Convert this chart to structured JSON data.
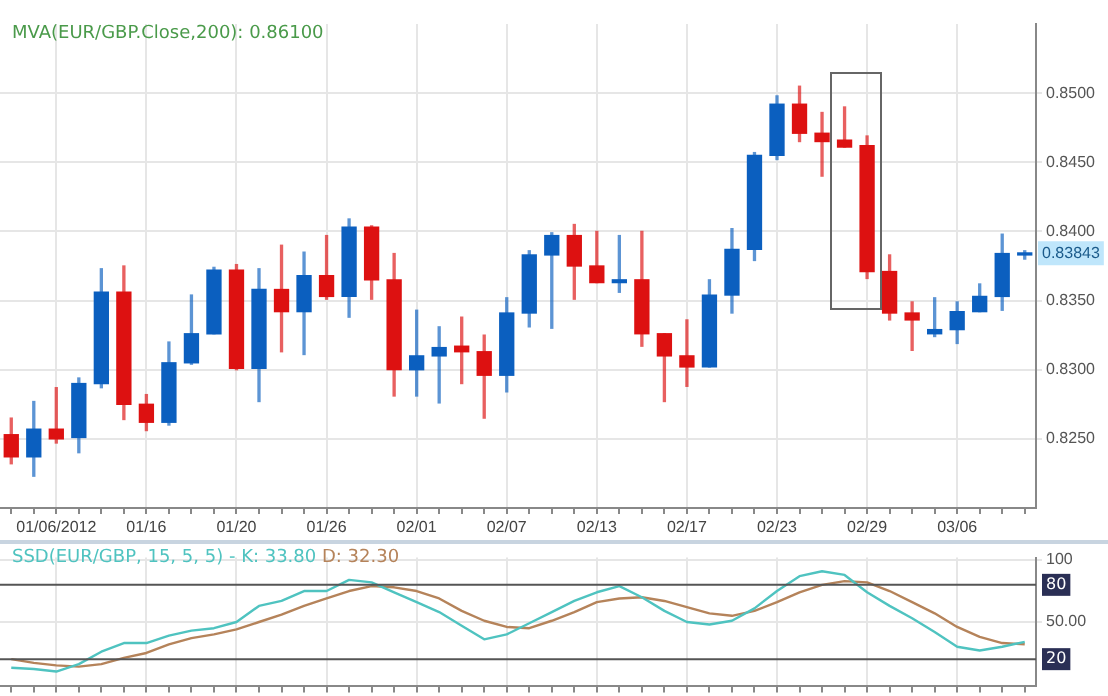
{
  "chart_data": [
    {
      "type": "candlestick",
      "title": "MVA(EUR/GBP.Close,200): 0.86100",
      "categories": [
        null,
        null,
        "01/06/2012",
        null,
        null,
        null,
        "01/16",
        null,
        null,
        null,
        "01/20",
        null,
        null,
        null,
        "01/26",
        null,
        null,
        null,
        "02/01",
        null,
        null,
        null,
        "02/07",
        null,
        null,
        null,
        "02/13",
        null,
        null,
        null,
        "02/17",
        null,
        null,
        null,
        "02/23",
        null,
        null,
        null,
        "02/29",
        null,
        null,
        null,
        "03/06",
        null,
        null,
        null
      ],
      "ohlc": [
        [
          0.8253,
          0.8265,
          0.8232,
          0.8237
        ],
        [
          0.8237,
          0.8277,
          0.8223,
          0.8257
        ],
        [
          0.8257,
          0.8287,
          0.8247,
          0.825
        ],
        [
          0.8251,
          0.8294,
          0.824,
          0.829
        ],
        [
          0.829,
          0.8373,
          0.8287,
          0.8356
        ],
        [
          0.8356,
          0.8375,
          0.8264,
          0.8275
        ],
        [
          0.8275,
          0.8282,
          0.8256,
          0.8262
        ],
        [
          0.8262,
          0.832,
          0.826,
          0.8305
        ],
        [
          0.8305,
          0.8354,
          0.8304,
          0.8326
        ],
        [
          0.8326,
          0.8374,
          0.8326,
          0.8372
        ],
        [
          0.8372,
          0.8376,
          0.83,
          0.8301
        ],
        [
          0.8301,
          0.8373,
          0.8277,
          0.8358
        ],
        [
          0.8358,
          0.839,
          0.8313,
          0.8342
        ],
        [
          0.8342,
          0.8385,
          0.8311,
          0.8368
        ],
        [
          0.8368,
          0.8397,
          0.8351,
          0.8353
        ],
        [
          0.8353,
          0.8409,
          0.8338,
          0.8403
        ],
        [
          0.8403,
          0.8404,
          0.8351,
          0.8365
        ],
        [
          0.8365,
          0.8384,
          0.8281,
          0.83
        ],
        [
          0.83,
          0.8343,
          0.8281,
          0.831
        ],
        [
          0.831,
          0.8331,
          0.8276,
          0.8316
        ],
        [
          0.8317,
          0.8338,
          0.829,
          0.8313
        ],
        [
          0.8313,
          0.8325,
          0.8265,
          0.8296
        ],
        [
          0.8296,
          0.8352,
          0.8284,
          0.8341
        ],
        [
          0.8341,
          0.8386,
          0.8331,
          0.8383
        ],
        [
          0.8383,
          0.8399,
          0.833,
          0.8397
        ],
        [
          0.8397,
          0.8405,
          0.8351,
          0.8375
        ],
        [
          0.8375,
          0.84,
          0.8363,
          0.8363
        ],
        [
          0.8363,
          0.8397,
          0.8356,
          0.8365
        ],
        [
          0.8365,
          0.84,
          0.8317,
          0.8326
        ],
        [
          0.8326,
          0.8326,
          0.8277,
          0.831
        ],
        [
          0.831,
          0.8336,
          0.8288,
          0.8302
        ],
        [
          0.8302,
          0.8365,
          0.8302,
          0.8354
        ],
        [
          0.8354,
          0.8402,
          0.8341,
          0.8387
        ],
        [
          0.8387,
          0.8457,
          0.8379,
          0.8455
        ],
        [
          0.8455,
          0.8498,
          0.8452,
          0.8492
        ],
        [
          0.8492,
          0.8505,
          0.8465,
          0.8471
        ],
        [
          0.8471,
          0.8486,
          0.844,
          0.8465
        ],
        [
          0.8466,
          0.849,
          0.8461,
          0.8461
        ],
        [
          0.8462,
          0.8469,
          0.8366,
          0.8371
        ],
        [
          0.8371,
          0.8383,
          0.8336,
          0.8341
        ],
        [
          0.8341,
          0.8349,
          0.8314,
          0.8336
        ],
        [
          0.8326,
          0.8352,
          0.8324,
          0.8329
        ],
        [
          0.8329,
          0.8349,
          0.8319,
          0.8342
        ],
        [
          0.8342,
          0.8362,
          0.8342,
          0.8353
        ],
        [
          0.8353,
          0.8398,
          0.8343,
          0.8384
        ],
        [
          0.8383,
          0.8386,
          0.838,
          0.8384
        ]
      ],
      "colors": [
        "#dd1111",
        "#0b5fbf",
        "#dd1111",
        "#0b5fbf",
        "#0b5fbf",
        "#dd1111",
        "#dd1111",
        "#0b5fbf",
        "#0b5fbf",
        "#0b5fbf",
        "#dd1111",
        "#0b5fbf",
        "#dd1111",
        "#0b5fbf",
        "#dd1111",
        "#0b5fbf",
        "#dd1111",
        "#dd1111",
        "#0b5fbf",
        "#0b5fbf",
        "#dd1111",
        "#dd1111",
        "#0b5fbf",
        "#0b5fbf",
        "#0b5fbf",
        "#dd1111",
        "#dd1111",
        "#0b5fbf",
        "#dd1111",
        "#dd1111",
        "#dd1111",
        "#0b5fbf",
        "#0b5fbf",
        "#0b5fbf",
        "#0b5fbf",
        "#dd1111",
        "#dd1111",
        "#dd1111",
        "#dd1111",
        "#dd1111",
        "#dd1111",
        "#0b5fbf",
        "#0b5fbf",
        "#0b5fbf",
        "#0b5fbf",
        "#0b5fbf"
      ],
      "ylim": [
        0.82,
        0.855
      ],
      "yticks": [
        {
          "value": 0.825,
          "label": "0.8250"
        },
        {
          "value": 0.83,
          "label": "0.8300"
        },
        {
          "value": 0.835,
          "label": "0.8350"
        },
        {
          "value": 0.84,
          "label": "0.8400"
        },
        {
          "value": 0.845,
          "label": "0.8450"
        },
        {
          "value": 0.85,
          "label": "0.8500"
        }
      ],
      "grid": true,
      "annotations": [
        {
          "text": "0.83843",
          "y": 0.83843
        }
      ]
    },
    {
      "type": "line",
      "title": "SSD(EUR/GBP, 15, 5, 5) -",
      "categories": [
        null,
        null,
        null,
        null,
        null,
        null,
        null,
        null,
        null,
        null,
        null,
        null,
        null,
        null,
        null,
        null,
        null,
        null,
        null,
        null,
        null,
        null,
        null,
        null,
        null,
        null,
        null,
        null,
        null,
        null,
        null,
        null,
        null,
        null,
        null,
        null,
        null,
        null,
        null,
        null,
        null,
        null,
        null,
        null,
        null,
        null
      ],
      "series": [
        {
          "name": "K: 33.80",
          "color": "#4fc3c0",
          "values": [
            13,
            12,
            10,
            16,
            26,
            33,
            33,
            39,
            43,
            45,
            50,
            63,
            67,
            75,
            75,
            84,
            82,
            74,
            66,
            58,
            47,
            36,
            40,
            49,
            58,
            67,
            74,
            79,
            70,
            59,
            50,
            48,
            51,
            61,
            75,
            87,
            91,
            88,
            74,
            63,
            53,
            42,
            30,
            27,
            30,
            34
          ]
        },
        {
          "name": "D: 32.30",
          "color": "#b5835a",
          "values": [
            20,
            17,
            15,
            14,
            16,
            21,
            25,
            32,
            37,
            40,
            44,
            50,
            56,
            63,
            69,
            75,
            79,
            78,
            75,
            69,
            59,
            51,
            46,
            45,
            51,
            58,
            66,
            69,
            70,
            67,
            62,
            57,
            55,
            59,
            66,
            74,
            80,
            83,
            82,
            75,
            66,
            57,
            46,
            38,
            33,
            32
          ]
        }
      ],
      "ylim": [
        -2,
        102
      ],
      "yticks": [
        100,
        {
          "value": 50,
          "label": "50.00"
        }
      ],
      "ref_lines": [
        {
          "axis": "y",
          "value": 80,
          "label": "80",
          "color": "#555555"
        },
        {
          "axis": "y",
          "value": 20,
          "label": "20",
          "color": "#555555"
        }
      ],
      "grid": true,
      "legend": "top",
      "tick_labels": "y",
      "marker": "none"
    }
  ]
}
